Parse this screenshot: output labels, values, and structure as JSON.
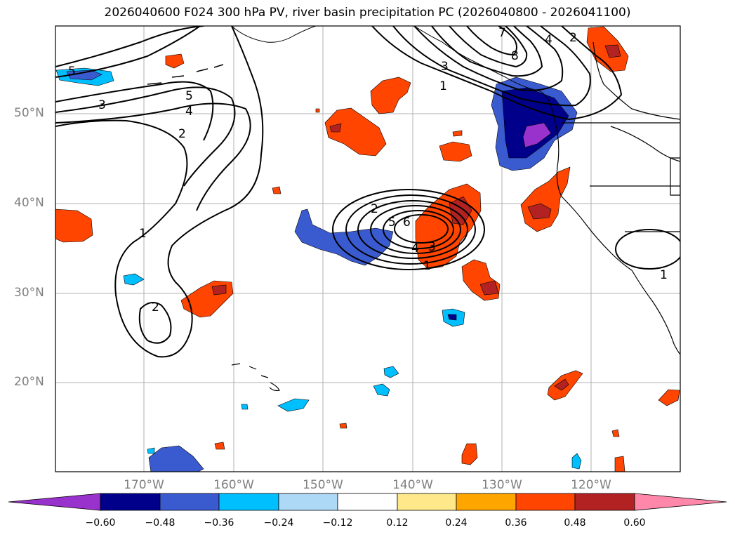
{
  "title": "2026040600 F024 300 hPa PV, river basin precipitation PC (2026040800 - 2026041100)",
  "lat_labels": [
    "50°N",
    "40°N",
    "30°N",
    "20°N"
  ],
  "lon_labels": [
    "170°W",
    "160°W",
    "150°W",
    "140°W",
    "130°W",
    "120°W"
  ],
  "colorbar": {
    "ticks": [
      "−0.60",
      "−0.48",
      "−0.36",
      "−0.24",
      "−0.12",
      "0.12",
      "0.24",
      "0.36",
      "0.48",
      "0.60"
    ],
    "colors": [
      "#9932cc",
      "#00008b",
      "#3a5bd0",
      "#00bfff",
      "#add8f6",
      "#ffffff",
      "#ffe88a",
      "#ffa500",
      "#ff4500",
      "#b22222",
      "#ff88aa"
    ]
  },
  "contour_labels": [
    "5",
    "3",
    "5",
    "4",
    "2",
    "1",
    "2",
    "2",
    "5",
    "6",
    "4",
    "3",
    "1",
    "3",
    "1",
    "7",
    "8",
    "4",
    "2",
    "1"
  ]
}
